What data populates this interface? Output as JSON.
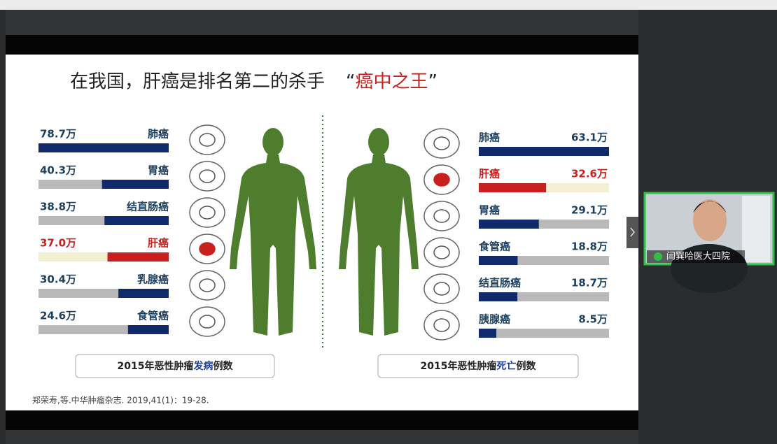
{
  "slide": {
    "title": "在我国，肝癌是排名第二的杀手",
    "title_quote_open": "“",
    "title_highlight": "癌中之王",
    "title_quote_close": "”",
    "left": {
      "caption": [
        "2015年恶性肿瘤",
        "发病",
        "例数"
      ],
      "items": [
        {
          "name": "肺癌",
          "value": 78.7,
          "value_label": "78.7万",
          "color": "#102a6c"
        },
        {
          "name": "胃癌",
          "value": 40.3,
          "value_label": "40.3万",
          "color": "#102a6c"
        },
        {
          "name": "结直肠癌",
          "value": 38.8,
          "value_label": "38.8万",
          "color": "#102a6c"
        },
        {
          "name": "肝癌",
          "value": 37.0,
          "value_label": "37.0万",
          "color": "#c8201e"
        },
        {
          "name": "乳腺癌",
          "value": 30.4,
          "value_label": "30.4万",
          "color": "#102a6c"
        },
        {
          "name": "食管癌",
          "value": 24.6,
          "value_label": "24.6万",
          "color": "#102a6c"
        }
      ]
    },
    "right": {
      "caption": [
        "2015年恶性肿瘤",
        "死亡",
        "例数"
      ],
      "items": [
        {
          "name": "肺癌",
          "value": 63.1,
          "value_label": "63.1万",
          "color": "#102a6c"
        },
        {
          "name": "肝癌",
          "value": 32.6,
          "value_label": "32.6万",
          "color": "#c8201e"
        },
        {
          "name": "胃癌",
          "value": 29.1,
          "value_label": "29.1万",
          "color": "#102a6c"
        },
        {
          "name": "食管癌",
          "value": 18.8,
          "value_label": "18.8万",
          "color": "#102a6c"
        },
        {
          "name": "结直肠癌",
          "value": 18.7,
          "value_label": "18.7万",
          "color": "#102a6c"
        },
        {
          "name": "胰腺癌",
          "value": 8.5,
          "value_label": "8.5万",
          "color": "#102a6c"
        }
      ]
    },
    "citation": "郑荣寿,等.中华肿瘤杂志. 2019,41(1)：19-28."
  },
  "webcam": {
    "name": "闫巽哈医大四院"
  }
}
